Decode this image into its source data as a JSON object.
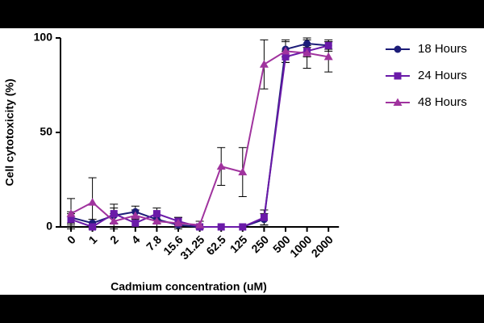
{
  "chart_data": {
    "type": "line",
    "x_label": "Cadmium concentration (uM)",
    "y_label": "Cell cytotoxicity (%)",
    "categories": [
      "0",
      "1",
      "2",
      "4",
      "7.8",
      "15.6",
      "31.25",
      "62.5",
      "125",
      "250",
      "500",
      "1000",
      "2000"
    ],
    "ylim": [
      0,
      100
    ],
    "yticks": [
      0,
      50,
      100
    ],
    "series": [
      {
        "name": "18 Hours",
        "color": "#1c1c78",
        "marker": "circle",
        "values": [
          5,
          2,
          6,
          8,
          4,
          1,
          0,
          0,
          0,
          4,
          94,
          97,
          96
        ],
        "errors": [
          3,
          2,
          4,
          3,
          2,
          1,
          0,
          0,
          0,
          3,
          4,
          2,
          2
        ]
      },
      {
        "name": "24 Hours",
        "color": "#6a1aa8",
        "marker": "square",
        "values": [
          4,
          0,
          7,
          2,
          7,
          3,
          0,
          0,
          0,
          5,
          90,
          93,
          96
        ],
        "errors": [
          3,
          1,
          5,
          2,
          3,
          2,
          0,
          0,
          0,
          4,
          3,
          3,
          3
        ]
      },
      {
        "name": "48 Hours",
        "color": "#a0339e",
        "marker": "triangle",
        "values": [
          7,
          13,
          3,
          6,
          3,
          2,
          1,
          32,
          29,
          86,
          93,
          92,
          90
        ],
        "errors": [
          8,
          13,
          4,
          3,
          3,
          3,
          2,
          10,
          13,
          13,
          6,
          8,
          8
        ]
      }
    ],
    "legend": "right"
  }
}
